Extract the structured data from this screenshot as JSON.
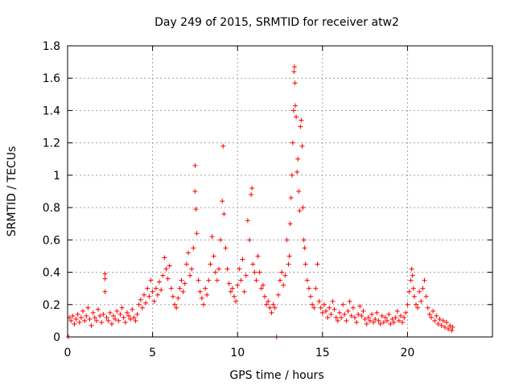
{
  "chart_data": {
    "type": "scatter",
    "title": "Day 249 of 2015, SRMTID for receiver atw2",
    "xlabel": "GPS time / hours",
    "ylabel": "SRMTID / TECUs",
    "xlim": [
      0,
      25
    ],
    "ylim": [
      0,
      1.8
    ],
    "xticks": [
      0,
      5,
      10,
      15,
      20
    ],
    "xtick_labels": [
      "0",
      "5",
      "10",
      "15",
      "20"
    ],
    "yticks": [
      0,
      0.2,
      0.4,
      0.6,
      0.8,
      1,
      1.2,
      1.4,
      1.6,
      1.8
    ],
    "ytick_labels": [
      "0",
      "0.2",
      "0.4",
      "0.6",
      "0.8",
      "1",
      "1.2",
      "1.4",
      "1.6",
      "1.8"
    ],
    "grid": true,
    "marker": "plus",
    "series": [
      {
        "name": "SRMTID",
        "color": "#ff0000",
        "points": [
          [
            0.05,
            0.0
          ],
          [
            0.1,
            0.12
          ],
          [
            0.2,
            0.1
          ],
          [
            0.3,
            0.13
          ],
          [
            0.4,
            0.08
          ],
          [
            0.5,
            0.11
          ],
          [
            0.6,
            0.14
          ],
          [
            0.7,
            0.09
          ],
          [
            0.8,
            0.12
          ],
          [
            0.9,
            0.16
          ],
          [
            1.0,
            0.1
          ],
          [
            1.1,
            0.13
          ],
          [
            1.2,
            0.18
          ],
          [
            1.3,
            0.11
          ],
          [
            1.4,
            0.07
          ],
          [
            1.5,
            0.15
          ],
          [
            1.6,
            0.12
          ],
          [
            1.7,
            0.1
          ],
          [
            1.8,
            0.17
          ],
          [
            1.9,
            0.13
          ],
          [
            2.0,
            0.09
          ],
          [
            2.1,
            0.14
          ],
          [
            2.2,
            0.39
          ],
          [
            2.2,
            0.36
          ],
          [
            2.2,
            0.28
          ],
          [
            2.3,
            0.12
          ],
          [
            2.4,
            0.1
          ],
          [
            2.5,
            0.15
          ],
          [
            2.6,
            0.08
          ],
          [
            2.7,
            0.13
          ],
          [
            2.8,
            0.11
          ],
          [
            2.9,
            0.16
          ],
          [
            3.0,
            0.1
          ],
          [
            3.1,
            0.14
          ],
          [
            3.2,
            0.18
          ],
          [
            3.3,
            0.12
          ],
          [
            3.4,
            0.09
          ],
          [
            3.5,
            0.15
          ],
          [
            3.6,
            0.13
          ],
          [
            3.7,
            0.11
          ],
          [
            3.8,
            0.17
          ],
          [
            3.9,
            0.12
          ],
          [
            4.0,
            0.1
          ],
          [
            4.1,
            0.14
          ],
          [
            4.2,
            0.2
          ],
          [
            4.3,
            0.23
          ],
          [
            4.4,
            0.18
          ],
          [
            4.5,
            0.26
          ],
          [
            4.6,
            0.21
          ],
          [
            4.7,
            0.3
          ],
          [
            4.8,
            0.25
          ],
          [
            4.9,
            0.35
          ],
          [
            5.0,
            0.28
          ],
          [
            5.1,
            0.22
          ],
          [
            5.2,
            0.3
          ],
          [
            5.3,
            0.26
          ],
          [
            5.4,
            0.34
          ],
          [
            5.5,
            0.29
          ],
          [
            5.6,
            0.38
          ],
          [
            5.7,
            0.49
          ],
          [
            5.8,
            0.42
          ],
          [
            5.9,
            0.36
          ],
          [
            6.0,
            0.44
          ],
          [
            6.1,
            0.3
          ],
          [
            6.2,
            0.25
          ],
          [
            6.3,
            0.2
          ],
          [
            6.4,
            0.18
          ],
          [
            6.5,
            0.24
          ],
          [
            6.6,
            0.3
          ],
          [
            6.7,
            0.35
          ],
          [
            6.8,
            0.28
          ],
          [
            6.9,
            0.33
          ],
          [
            7.0,
            0.45
          ],
          [
            7.1,
            0.52
          ],
          [
            7.2,
            0.38
          ],
          [
            7.3,
            0.42
          ],
          [
            7.4,
            0.55
          ],
          [
            7.5,
            0.9
          ],
          [
            7.5,
            1.06
          ],
          [
            7.55,
            0.79
          ],
          [
            7.6,
            0.64
          ],
          [
            7.7,
            0.35
          ],
          [
            7.8,
            0.28
          ],
          [
            7.9,
            0.24
          ],
          [
            8.0,
            0.2
          ],
          [
            8.1,
            0.3
          ],
          [
            8.2,
            0.26
          ],
          [
            8.3,
            0.35
          ],
          [
            8.4,
            0.45
          ],
          [
            8.5,
            0.62
          ],
          [
            8.6,
            0.5
          ],
          [
            8.7,
            0.4
          ],
          [
            8.8,
            0.35
          ],
          [
            8.9,
            0.42
          ],
          [
            9.0,
            0.6
          ],
          [
            9.1,
            0.84
          ],
          [
            9.15,
            1.18
          ],
          [
            9.2,
            0.76
          ],
          [
            9.3,
            0.55
          ],
          [
            9.4,
            0.42
          ],
          [
            9.5,
            0.33
          ],
          [
            9.6,
            0.28
          ],
          [
            9.7,
            0.3
          ],
          [
            9.8,
            0.25
          ],
          [
            9.9,
            0.22
          ],
          [
            10.0,
            0.32
          ],
          [
            10.1,
            0.42
          ],
          [
            10.2,
            0.35
          ],
          [
            10.3,
            0.48
          ],
          [
            10.4,
            0.28
          ],
          [
            10.5,
            0.38
          ],
          [
            10.6,
            0.72
          ],
          [
            10.7,
            0.6
          ],
          [
            10.8,
            0.88
          ],
          [
            10.85,
            0.92
          ],
          [
            10.9,
            0.45
          ],
          [
            11.0,
            0.4
          ],
          [
            11.1,
            0.35
          ],
          [
            11.2,
            0.5
          ],
          [
            11.3,
            0.4
          ],
          [
            11.4,
            0.3
          ],
          [
            11.5,
            0.32
          ],
          [
            11.6,
            0.25
          ],
          [
            11.7,
            0.2
          ],
          [
            11.8,
            0.22
          ],
          [
            11.9,
            0.18
          ],
          [
            12.0,
            0.15
          ],
          [
            12.1,
            0.2
          ],
          [
            12.2,
            0.18
          ],
          [
            12.3,
            0.0
          ],
          [
            12.4,
            0.26
          ],
          [
            12.5,
            0.35
          ],
          [
            12.6,
            0.4
          ],
          [
            12.7,
            0.32
          ],
          [
            12.8,
            0.38
          ],
          [
            12.9,
            0.6
          ],
          [
            13.0,
            0.45
          ],
          [
            13.05,
            0.5
          ],
          [
            13.1,
            0.7
          ],
          [
            13.15,
            0.86
          ],
          [
            13.2,
            1.0
          ],
          [
            13.25,
            1.2
          ],
          [
            13.3,
            1.4
          ],
          [
            13.32,
            1.64
          ],
          [
            13.35,
            1.67
          ],
          [
            13.38,
            1.57
          ],
          [
            13.4,
            1.43
          ],
          [
            13.45,
            1.36
          ],
          [
            13.5,
            1.02
          ],
          [
            13.55,
            1.1
          ],
          [
            13.6,
            0.9
          ],
          [
            13.65,
            0.78
          ],
          [
            13.7,
            1.3
          ],
          [
            13.75,
            1.34
          ],
          [
            13.8,
            1.18
          ],
          [
            13.85,
            0.8
          ],
          [
            13.9,
            0.6
          ],
          [
            13.95,
            0.55
          ],
          [
            14.0,
            0.45
          ],
          [
            14.1,
            0.35
          ],
          [
            14.2,
            0.3
          ],
          [
            14.3,
            0.25
          ],
          [
            14.4,
            0.2
          ],
          [
            14.5,
            0.18
          ],
          [
            14.6,
            0.3
          ],
          [
            14.7,
            0.45
          ],
          [
            14.8,
            0.22
          ],
          [
            14.9,
            0.18
          ],
          [
            15.0,
            0.15
          ],
          [
            15.1,
            0.2
          ],
          [
            15.2,
            0.16
          ],
          [
            15.3,
            0.12
          ],
          [
            15.4,
            0.18
          ],
          [
            15.5,
            0.14
          ],
          [
            15.6,
            0.22
          ],
          [
            15.7,
            0.17
          ],
          [
            15.8,
            0.12
          ],
          [
            15.9,
            0.1
          ],
          [
            16.0,
            0.15
          ],
          [
            16.1,
            0.12
          ],
          [
            16.2,
            0.2
          ],
          [
            16.3,
            0.14
          ],
          [
            16.4,
            0.1
          ],
          [
            16.5,
            0.16
          ],
          [
            16.6,
            0.22
          ],
          [
            16.7,
            0.13
          ],
          [
            16.8,
            0.18
          ],
          [
            16.9,
            0.12
          ],
          [
            17.0,
            0.09
          ],
          [
            17.1,
            0.14
          ],
          [
            17.2,
            0.19
          ],
          [
            17.3,
            0.13
          ],
          [
            17.4,
            0.16
          ],
          [
            17.5,
            0.11
          ],
          [
            17.6,
            0.08
          ],
          [
            17.7,
            0.12
          ],
          [
            17.8,
            0.1
          ],
          [
            17.9,
            0.14
          ],
          [
            18.0,
            0.09
          ],
          [
            18.1,
            0.11
          ],
          [
            18.2,
            0.15
          ],
          [
            18.3,
            0.1
          ],
          [
            18.4,
            0.08
          ],
          [
            18.5,
            0.13
          ],
          [
            18.6,
            0.09
          ],
          [
            18.7,
            0.12
          ],
          [
            18.8,
            0.1
          ],
          [
            18.9,
            0.14
          ],
          [
            19.0,
            0.08
          ],
          [
            19.1,
            0.11
          ],
          [
            19.2,
            0.09
          ],
          [
            19.3,
            0.12
          ],
          [
            19.4,
            0.16
          ],
          [
            19.5,
            0.1
          ],
          [
            19.6,
            0.13
          ],
          [
            19.7,
            0.09
          ],
          [
            19.8,
            0.12
          ],
          [
            19.9,
            0.15
          ],
          [
            20.0,
            0.2
          ],
          [
            20.1,
            0.28
          ],
          [
            20.2,
            0.35
          ],
          [
            20.25,
            0.42
          ],
          [
            20.3,
            0.38
          ],
          [
            20.35,
            0.3
          ],
          [
            20.4,
            0.25
          ],
          [
            20.5,
            0.2
          ],
          [
            20.6,
            0.18
          ],
          [
            20.7,
            0.28
          ],
          [
            20.8,
            0.22
          ],
          [
            20.9,
            0.3
          ],
          [
            21.0,
            0.35
          ],
          [
            21.1,
            0.25
          ],
          [
            21.2,
            0.18
          ],
          [
            21.3,
            0.14
          ],
          [
            21.4,
            0.12
          ],
          [
            21.5,
            0.16
          ],
          [
            21.6,
            0.1
          ],
          [
            21.7,
            0.13
          ],
          [
            21.8,
            0.08
          ],
          [
            21.9,
            0.11
          ],
          [
            22.0,
            0.07
          ],
          [
            22.1,
            0.1
          ],
          [
            22.2,
            0.06
          ],
          [
            22.3,
            0.09
          ],
          [
            22.4,
            0.05
          ],
          [
            22.5,
            0.07
          ],
          [
            22.6,
            0.04
          ],
          [
            22.65,
            0.06
          ]
        ]
      }
    ]
  }
}
